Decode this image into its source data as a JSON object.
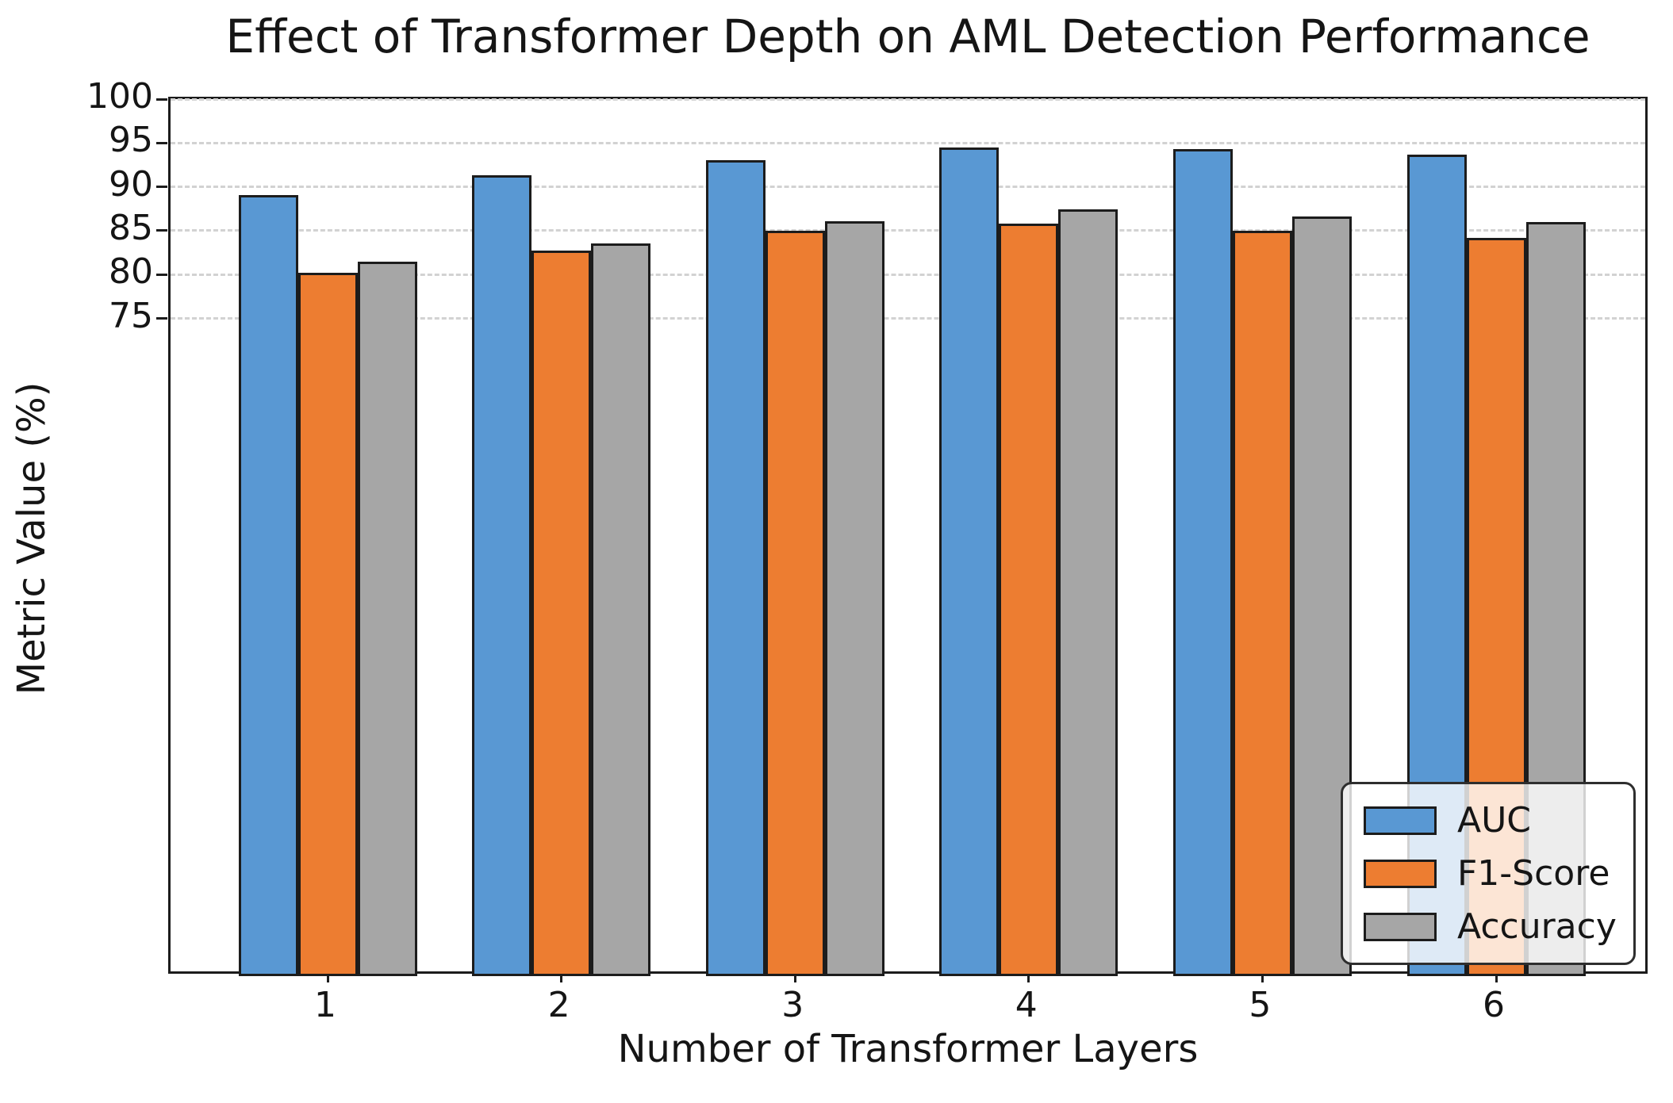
{
  "chart_data": {
    "type": "bar",
    "title": "Effect of Transformer Depth on AML Detection Performance",
    "xlabel": "Number of Transformer Layers",
    "ylabel": "Metric Value (%)",
    "categories": [
      "1",
      "2",
      "3",
      "4",
      "5",
      "6"
    ],
    "series": [
      {
        "name": "AUC",
        "color": "#5998d3",
        "values": [
          89.1,
          91.3,
          93.0,
          94.5,
          94.3,
          93.7
        ]
      },
      {
        "name": "F1-Score",
        "color": "#ed7d31",
        "values": [
          80.2,
          82.7,
          85.0,
          85.8,
          85.0,
          84.2
        ]
      },
      {
        "name": "Accuracy",
        "color": "#a6a6a6",
        "values": [
          81.5,
          83.5,
          86.1,
          87.4,
          86.6,
          86.0
        ]
      }
    ],
    "ylim": [
      0,
      100
    ],
    "yticks": [
      75,
      80,
      85,
      90,
      95,
      100
    ],
    "grid": true,
    "grid_style": "dashed",
    "legend_position": "lower right",
    "bar_edge_color": "#1c1c1c",
    "background_color": "#ffffff"
  }
}
